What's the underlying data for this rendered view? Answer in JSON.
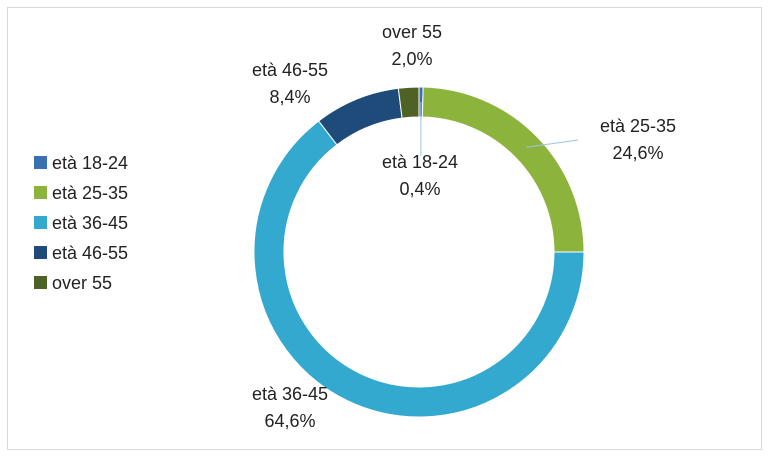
{
  "chart_data": {
    "type": "donut",
    "categories": [
      "età 18-24",
      "età 25-35",
      "età 36-45",
      "età 46-55",
      "over 55"
    ],
    "values": [
      0.4,
      24.6,
      64.6,
      8.4,
      2.0
    ],
    "value_labels": [
      "0,4%",
      "24,6%",
      "64,6%",
      "8,4%",
      "2,0%"
    ],
    "colors": [
      "#3a6fb0",
      "#8cb43c",
      "#33a9d0",
      "#1f4b7a",
      "#4e6226"
    ],
    "legend": "left"
  }
}
